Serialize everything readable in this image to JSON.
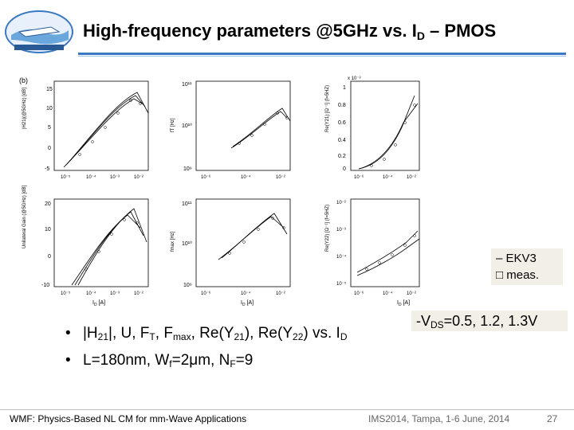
{
  "slide": {
    "title_main": "High-frequency parameters @5GHz vs. I",
    "title_sub": "D",
    "title_tail": " – PMOS",
    "logo_alt": "IMS 2014 Tampa Bay Florida",
    "colors": {
      "accent": "#3a78c2",
      "legend_bg": "#f2f0e6"
    }
  },
  "figure": {
    "panel_label": "(b)",
    "axis_unit_x": "I",
    "axis_unit_x_sub": "D",
    "axis_unit_x_tail": " [A]",
    "panels": [
      {
        "ylabel": "|H21|(@5GHz) [dB]",
        "yticks": [
          "15",
          "10",
          "5",
          "0",
          "-5"
        ],
        "xticks": [
          "10⁻⁵",
          "10⁻⁴",
          "10⁻³",
          "10⁻²"
        ]
      },
      {
        "ylabel": "fT [Hz]",
        "yticks": [
          "10¹¹",
          "10¹⁰",
          "10⁹"
        ],
        "xticks": [
          "10⁻⁶",
          "10⁻⁴",
          "10⁻²"
        ]
      },
      {
        "ylabel": "Re(Y21) [Ω⁻¹] (f=5HZ)",
        "yticks": [
          "x 10⁻³",
          "1",
          "0.8",
          "0.6",
          "0.4",
          "0.2",
          "0"
        ],
        "xticks": [
          "10⁻⁶",
          "10⁻⁴",
          "10⁻²"
        ]
      },
      {
        "ylabel": "Unilateral Gain (@5GHz) [dB]",
        "yticks": [
          "20",
          "10",
          "0",
          "-10"
        ],
        "xticks": [
          "10⁻⁵",
          "10⁻⁴",
          "10⁻³",
          "10⁻²"
        ]
      },
      {
        "ylabel": "fmax [Hz]",
        "yticks": [
          "10¹¹",
          "10¹⁰",
          "10⁹"
        ],
        "xticks": [
          "10⁻⁶",
          "10⁻⁴",
          "10⁻²"
        ]
      },
      {
        "ylabel": "Re(Y22) [Ω⁻¹] (f=5HZ)",
        "yticks": [
          "10⁻²",
          "10⁻³",
          "10⁻⁴",
          "10⁻⁵"
        ],
        "xticks": [
          "10⁻⁶",
          "10⁻⁴",
          "10⁻²"
        ]
      }
    ]
  },
  "legend": {
    "line_item": "– EKV3",
    "marker_item": "□ meas."
  },
  "conditions": {
    "vds_prefix": "-V",
    "vds_sub": "DS",
    "vds_values": "=0.5, 1.2, 1.3V"
  },
  "bullets": {
    "dot": "•",
    "b1_a": "|H",
    "b1_sub1": "21",
    "b1_b": "|, U, F",
    "b1_sub2": "T",
    "b1_c": ", F",
    "b1_sub3": "max",
    "b1_d": ", Re(Y",
    "b1_sub4": "21",
    "b1_e": "), Re(Y",
    "b1_sub5": "22",
    "b1_f": ") vs. I",
    "b1_sub6": "D",
    "b2_a": "L=180nm, W",
    "b2_sub1": "f",
    "b2_b": "=2μm, N",
    "b2_sub2": "F",
    "b2_c": "=9"
  },
  "footer": {
    "left": "WMF: Physics-Based NL CM for mm-Wave Applications",
    "center": "IMS2014, Tampa, 1-6 June, 2014",
    "page": "27"
  }
}
